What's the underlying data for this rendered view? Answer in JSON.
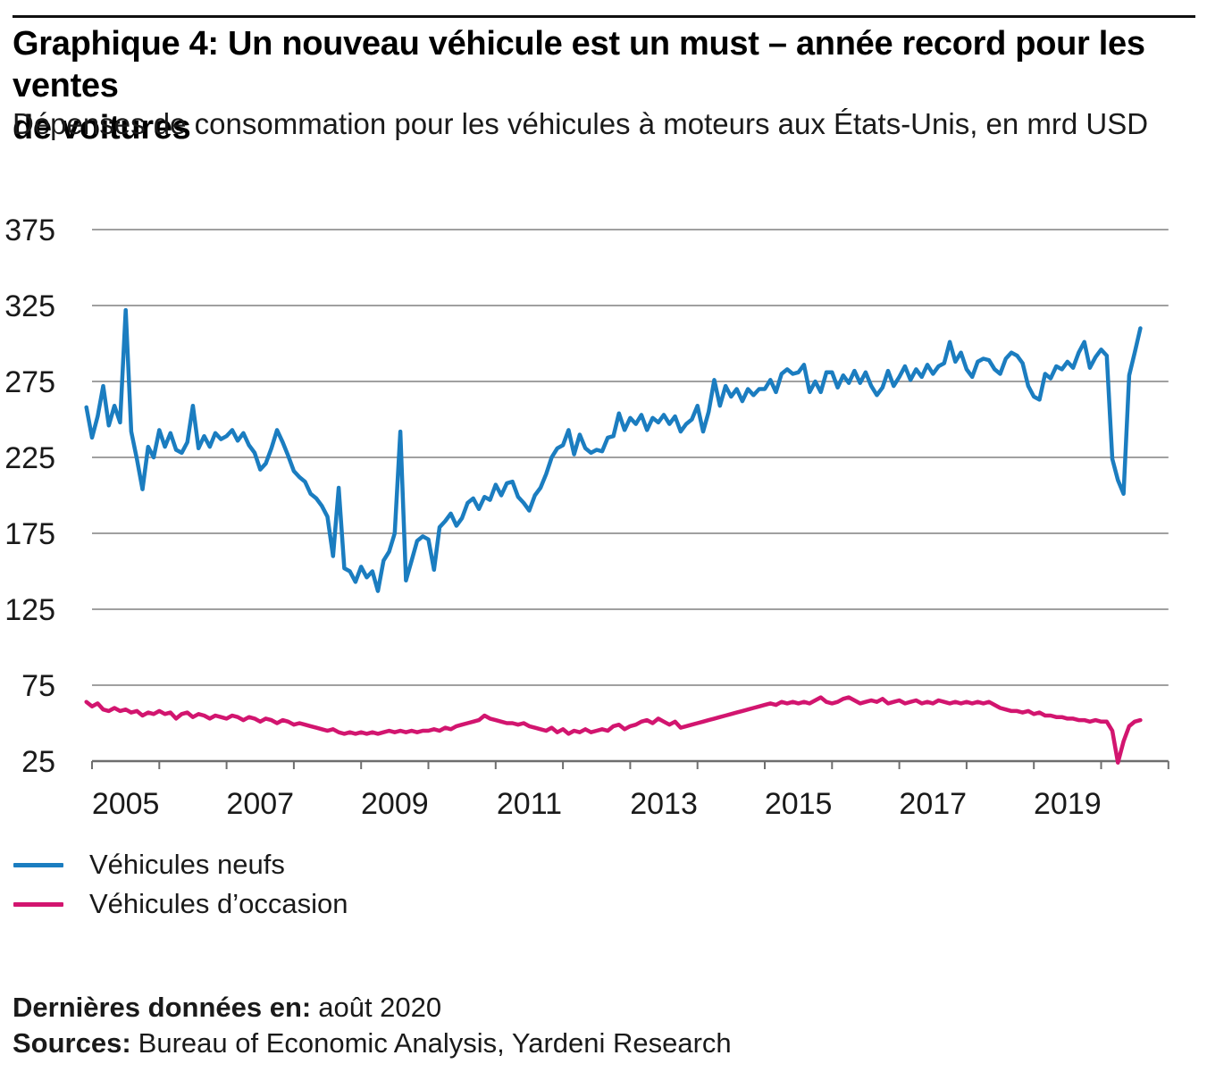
{
  "header": {
    "title_line1": "Graphique 4: Un nouveau véhicule est un must – année record pour les ventes",
    "title_line2": "de voitures",
    "subtitle": "Dépenses de consommation pour les véhicules à moteurs aux États-Unis, en mrd USD"
  },
  "legend": [
    {
      "label": "Véhicules neufs"
    },
    {
      "label": "Véhicules d’occasion"
    }
  ],
  "footer": {
    "last_data_label": "Dernières données en:",
    "last_data_value": "août 2020",
    "sources_label": "Sources:",
    "sources_value": "Bureau of Economic Analysis, Yardeni Research"
  },
  "chart_data": {
    "type": "line",
    "title": "Graphique 4: Un nouveau véhicule est un must – année record pour les ventes de voitures",
    "subtitle": "Dépenses de consommation pour les véhicules à moteurs aux États-Unis, en mrd USD",
    "ylabel": "mrd USD",
    "xlabel": "",
    "y_range": [
      25,
      375
    ],
    "y_ticks": [
      375,
      325,
      275,
      225,
      175,
      125,
      75,
      25
    ],
    "x_range": [
      2005,
      2021
    ],
    "x_labels": [
      2005,
      2007,
      2009,
      2011,
      2013,
      2015,
      2017,
      2019
    ],
    "grid": "horizontal",
    "legend_position": "bottom-left",
    "colors": {
      "grid": "#a0a0a0",
      "axis": "#6e6e6e",
      "text": "#1a1a1a"
    },
    "frequency": "monthly",
    "series": [
      {
        "name": "Véhicules neufs",
        "color": "#1b7dc0",
        "start": "2004-12",
        "values": [
          258,
          238,
          252,
          272,
          246,
          259,
          248,
          322,
          242,
          224,
          204,
          232,
          225,
          243,
          232,
          241,
          230,
          228,
          235,
          259,
          231,
          239,
          232,
          241,
          237,
          239,
          243,
          236,
          241,
          233,
          228,
          217,
          221,
          231,
          243,
          235,
          226,
          216,
          212,
          209,
          201,
          198,
          193,
          186,
          160,
          205,
          152,
          150,
          143,
          153,
          146,
          150,
          137,
          157,
          163,
          175,
          242,
          144,
          157,
          170,
          173,
          171,
          151,
          179,
          183,
          188,
          180,
          185,
          195,
          198,
          191,
          199,
          197,
          207,
          200,
          208,
          209,
          199,
          195,
          190,
          200,
          205,
          214,
          225,
          231,
          233,
          243,
          227,
          240,
          231,
          228,
          230,
          229,
          238,
          239,
          254,
          243,
          251,
          247,
          253,
          243,
          251,
          248,
          253,
          247,
          252,
          242,
          247,
          250,
          259,
          242,
          255,
          276,
          259,
          272,
          265,
          270,
          262,
          270,
          266,
          270,
          270,
          276,
          268,
          280,
          283,
          280,
          281,
          286,
          268,
          275,
          268,
          281,
          281,
          271,
          279,
          274,
          282,
          274,
          281,
          272,
          266,
          271,
          282,
          272,
          278,
          285,
          276,
          283,
          278,
          286,
          280,
          285,
          287,
          301,
          288,
          294,
          283,
          278,
          288,
          290,
          289,
          283,
          280,
          290,
          294,
          292,
          287,
          272,
          265,
          263,
          280,
          277,
          285,
          283,
          288,
          284,
          294,
          301,
          284,
          291,
          296,
          292,
          224,
          210,
          201,
          279,
          294,
          310
        ]
      },
      {
        "name": "Véhicules d’occasion",
        "color": "#d2156f",
        "start": "2004-12",
        "values": [
          64,
          61,
          63,
          59,
          58,
          60,
          58,
          59,
          57,
          58,
          55,
          57,
          56,
          58,
          56,
          57,
          53,
          56,
          57,
          54,
          56,
          55,
          53,
          55,
          54,
          53,
          55,
          54,
          52,
          54,
          53,
          51,
          53,
          52,
          50,
          52,
          51,
          49,
          50,
          49,
          48,
          47,
          46,
          45,
          46,
          44,
          43,
          44,
          43,
          44,
          43,
          44,
          43,
          44,
          45,
          44,
          45,
          44,
          45,
          44,
          45,
          45,
          46,
          45,
          47,
          46,
          48,
          49,
          50,
          51,
          52,
          55,
          53,
          52,
          51,
          50,
          50,
          49,
          50,
          48,
          47,
          46,
          45,
          47,
          44,
          46,
          43,
          45,
          44,
          46,
          44,
          45,
          46,
          45,
          48,
          49,
          46,
          48,
          49,
          51,
          52,
          50,
          53,
          51,
          49,
          51,
          47,
          48,
          49,
          50,
          51,
          52,
          53,
          54,
          55,
          56,
          57,
          58,
          59,
          60,
          61,
          62,
          63,
          62,
          64,
          63,
          64,
          63,
          64,
          63,
          65,
          67,
          64,
          63,
          64,
          66,
          67,
          65,
          63,
          64,
          65,
          64,
          66,
          63,
          64,
          65,
          63,
          64,
          65,
          63,
          64,
          63,
          65,
          64,
          63,
          64,
          63,
          64,
          63,
          64,
          63,
          64,
          62,
          60,
          59,
          58,
          58,
          57,
          58,
          56,
          57,
          55,
          55,
          54,
          54,
          53,
          53,
          52,
          52,
          51,
          52,
          51,
          51,
          45,
          24,
          38,
          48,
          51,
          52
        ]
      }
    ]
  }
}
